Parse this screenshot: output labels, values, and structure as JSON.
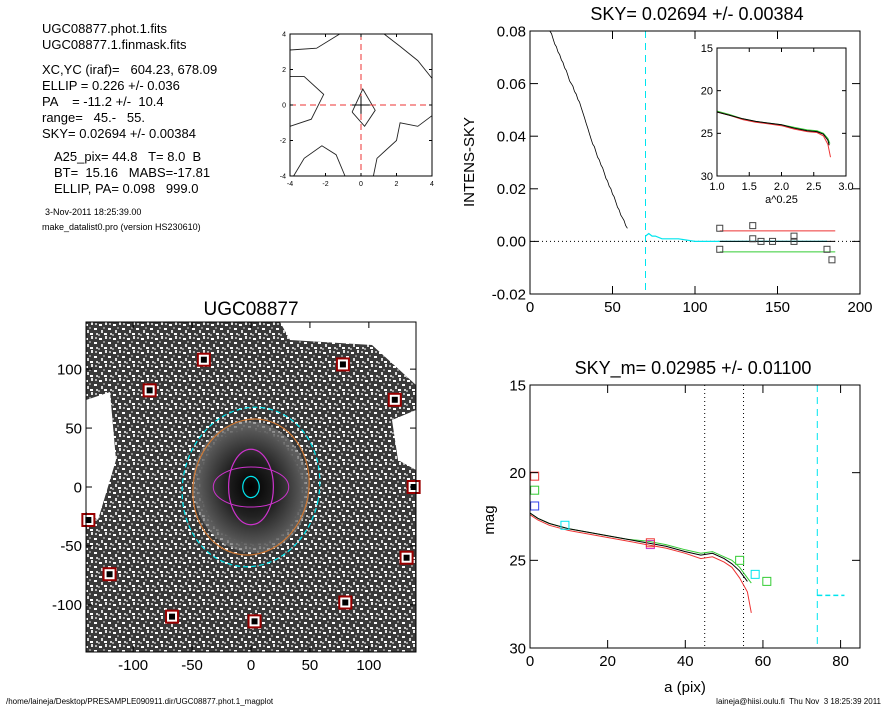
{
  "info": {
    "lines_a": [
      "UGC08877.phot.1.fits",
      "UGC08877.1.finmask.fits"
    ],
    "lines_b": [
      "XC,YC (iraf)=   604.23, 678.09",
      "ELLIP = 0.226 +/- 0.036",
      "PA    = -11.2 +/-  10.4",
      "range=   45.-   55.",
      "SKY= 0.02694 +/- 0.00384"
    ],
    "lines_c": [
      "A25_pix= 44.8   T= 8.0  B",
      "BT=  15.16   MABS=-17.81",
      "ELLIP, PA= 0.098   999.0"
    ],
    "date": "3-Nov-2011 18:25:39.00",
    "program": "make_datalist0.pro (version HS230610)"
  },
  "footer": {
    "left": "/home/laineja/Desktop/PRESAMPLE090911.dir/UGC08877.phot.1_magplot",
    "right": "laineja@hiisi.oulu.fi  Thu Nov  3 18:25:39 2011"
  },
  "colors": {
    "cyan": "#00e5ee",
    "red": "#ee3333",
    "green": "#33cc33",
    "blue": "#3344ee",
    "dark_red": "#990000",
    "magenta": "#cc33cc",
    "orange": "#cc7733"
  },
  "chart_data": [
    {
      "id": "contour",
      "type": "contour",
      "title": "",
      "xlim": [
        -4,
        4
      ],
      "ylim": [
        -4,
        4
      ],
      "xticks": [
        -4,
        -2,
        0,
        2,
        4
      ],
      "yticks": [
        -4,
        -2,
        0,
        2,
        4
      ],
      "xtick_labels": [
        "-4",
        "-2",
        "0",
        "2",
        "4"
      ],
      "ytick_labels": [
        "-4",
        "-2",
        "0",
        "2",
        "4"
      ],
      "contours": [
        [
          [
            -4,
            3.1
          ],
          [
            -2.5,
            3.2
          ],
          [
            -1.2,
            4.0
          ]
        ],
        [
          [
            1.3,
            4.0
          ],
          [
            2.2,
            3.3
          ],
          [
            3.2,
            2.5
          ],
          [
            4,
            1.5
          ]
        ],
        [
          [
            -4,
            -1.2
          ],
          [
            -2.8,
            -0.8
          ],
          [
            -2.1,
            0.6
          ],
          [
            -3.2,
            1.6
          ],
          [
            -4,
            1.6
          ]
        ],
        [
          [
            -3.8,
            -4
          ],
          [
            -3.2,
            -3.0
          ],
          [
            -2.2,
            -2.3
          ],
          [
            -1.4,
            -2.8
          ],
          [
            -0.9,
            -4
          ]
        ],
        [
          [
            0.7,
            -4
          ],
          [
            0.9,
            -3.0
          ],
          [
            2.0,
            -2.0
          ],
          [
            2.2,
            -1.0
          ],
          [
            3.2,
            -1.2
          ],
          [
            4,
            -0.6
          ]
        ],
        [
          [
            -0.5,
            -0.4
          ],
          [
            0.1,
            0.9
          ],
          [
            0.8,
            -0.3
          ],
          [
            0.2,
            -1.2
          ],
          [
            -0.5,
            -0.4
          ]
        ]
      ],
      "crosshair": [
        0,
        0
      ]
    },
    {
      "id": "sky",
      "type": "line",
      "title": "SKY= 0.02694 +/- 0.00384",
      "ylabel": "INTENS-SKY",
      "xlim": [
        0,
        200
      ],
      "ylim": [
        -0.02,
        0.08
      ],
      "xticks": [
        0,
        50,
        100,
        150,
        200
      ],
      "xtick_labels": [
        "0",
        "50",
        "100",
        "150",
        "200"
      ],
      "yticks": [
        -0.02,
        0,
        0.02,
        0.04,
        0.06,
        0.08
      ],
      "ytick_labels": [
        "-0.02",
        "0.00",
        "0.02",
        "0.04",
        "0.06",
        "0.08"
      ],
      "profile": [
        [
          12,
          0.08
        ],
        [
          13,
          0.079
        ],
        [
          14,
          0.077
        ],
        [
          15,
          0.075
        ],
        [
          16,
          0.074
        ],
        [
          17,
          0.072
        ],
        [
          18,
          0.071
        ],
        [
          19,
          0.069
        ],
        [
          20,
          0.068
        ],
        [
          21,
          0.066
        ],
        [
          22,
          0.065
        ],
        [
          23,
          0.063
        ],
        [
          24,
          0.061
        ],
        [
          25,
          0.06
        ],
        [
          26,
          0.059
        ],
        [
          27,
          0.057
        ],
        [
          28,
          0.056
        ],
        [
          29,
          0.054
        ],
        [
          30,
          0.053
        ],
        [
          31,
          0.051
        ],
        [
          32,
          0.049
        ],
        [
          33,
          0.047
        ],
        [
          34,
          0.045
        ],
        [
          35,
          0.043
        ],
        [
          36,
          0.041
        ],
        [
          37,
          0.039
        ],
        [
          38,
          0.037
        ],
        [
          39,
          0.036
        ],
        [
          40,
          0.034
        ],
        [
          41,
          0.032
        ],
        [
          42,
          0.031
        ],
        [
          43,
          0.029
        ],
        [
          44,
          0.028
        ],
        [
          45,
          0.026
        ],
        [
          46,
          0.024
        ],
        [
          47,
          0.023
        ],
        [
          48,
          0.021
        ],
        [
          49,
          0.02
        ],
        [
          50,
          0.018
        ],
        [
          51,
          0.017
        ],
        [
          52,
          0.015
        ],
        [
          53,
          0.013
        ],
        [
          54,
          0.012
        ],
        [
          55,
          0.01
        ],
        [
          56,
          0.009
        ],
        [
          57,
          0.008
        ],
        [
          58,
          0.006
        ],
        [
          59,
          0.005
        ]
      ],
      "sky_profile": [
        [
          70,
          0.002
        ],
        [
          72,
          0.003
        ],
        [
          74,
          0.002
        ],
        [
          76,
          0.002
        ],
        [
          80,
          0.001
        ],
        [
          85,
          0.001
        ],
        [
          90,
          0.001
        ],
        [
          95,
          0.0005
        ],
        [
          100,
          0.0
        ],
        [
          110,
          0.0
        ],
        [
          120,
          0.0
        ],
        [
          130,
          0.0
        ],
        [
          140,
          0.0
        ],
        [
          150,
          0.0
        ],
        [
          160,
          0.0
        ],
        [
          170,
          0.0
        ],
        [
          180,
          0.0
        ]
      ],
      "boxes": [
        [
          115,
          0.005
        ],
        [
          115,
          -0.003
        ],
        [
          135,
          0.006
        ],
        [
          135,
          0.001
        ],
        [
          140,
          0.0
        ],
        [
          147,
          0.0
        ],
        [
          160,
          0.002
        ],
        [
          160,
          0.0
        ],
        [
          180,
          -0.003
        ],
        [
          183,
          -0.007
        ]
      ],
      "hlines": [
        {
          "color": "red",
          "y": 0.004,
          "x": [
            115,
            185
          ]
        },
        {
          "color": "green",
          "y": -0.004,
          "x": [
            115,
            185
          ]
        },
        {
          "color": "black",
          "y": 0.0,
          "x": [
            115,
            185
          ]
        }
      ],
      "vline_x": 70,
      "inset": {
        "xlabel": "a^0.25",
        "xlim": [
          1.0,
          3.0
        ],
        "ylim": [
          15,
          30
        ],
        "xticks": [
          1.0,
          1.5,
          2.0,
          2.5,
          3.0
        ],
        "xtick_labels": [
          "1.0",
          "1.5",
          "2.0",
          "2.5",
          "3.0"
        ],
        "yticks": [
          15,
          20,
          25,
          30
        ],
        "ytick_labels": [
          "15",
          "20",
          "25",
          "30"
        ],
        "lines": [
          {
            "color": "green",
            "points": [
              [
                1.0,
                22.4
              ],
              [
                1.2,
                22.8
              ],
              [
                1.4,
                23.3
              ],
              [
                1.6,
                23.6
              ],
              [
                1.8,
                23.8
              ],
              [
                2.0,
                24.0
              ],
              [
                2.2,
                24.3
              ],
              [
                2.4,
                24.6
              ],
              [
                2.55,
                24.7
              ],
              [
                2.65,
                25.0
              ],
              [
                2.72,
                25.6
              ],
              [
                2.75,
                26.2
              ]
            ]
          },
          {
            "color": "red",
            "points": [
              [
                1.0,
                22.5
              ],
              [
                1.2,
                22.9
              ],
              [
                1.4,
                23.4
              ],
              [
                1.6,
                23.7
              ],
              [
                1.8,
                23.9
              ],
              [
                2.0,
                24.1
              ],
              [
                2.2,
                24.5
              ],
              [
                2.4,
                24.8
              ],
              [
                2.55,
                24.9
              ],
              [
                2.65,
                25.3
              ],
              [
                2.72,
                26.3
              ],
              [
                2.76,
                27.8
              ]
            ]
          },
          {
            "color": "black",
            "points": [
              [
                1.0,
                22.5
              ],
              [
                1.2,
                22.9
              ],
              [
                1.4,
                23.3
              ],
              [
                1.6,
                23.6
              ],
              [
                1.8,
                23.8
              ],
              [
                2.0,
                24.0
              ],
              [
                2.2,
                24.4
              ],
              [
                2.4,
                24.7
              ],
              [
                2.55,
                24.8
              ],
              [
                2.65,
                25.1
              ],
              [
                2.72,
                25.8
              ],
              [
                2.74,
                26.4
              ]
            ]
          }
        ]
      }
    },
    {
      "id": "image",
      "type": "image",
      "title": "UGC08877",
      "xlim": [
        -140,
        140
      ],
      "ylim": [
        -140,
        140
      ],
      "xticks": [
        -100,
        -50,
        0,
        50,
        100
      ],
      "xtick_labels": [
        "-100",
        "-50",
        "0",
        "50",
        "100"
      ],
      "yticks": [
        -100,
        -50,
        0,
        50,
        100
      ],
      "ytick_labels": [
        "-100",
        "-50",
        "0",
        "50",
        "100"
      ],
      "masked_stars": [
        [
          -40,
          108
        ],
        [
          -86,
          82
        ],
        [
          -138,
          -28
        ],
        [
          -120,
          -74
        ],
        [
          -67,
          -110
        ],
        [
          3,
          -114
        ],
        [
          80,
          -98
        ],
        [
          132,
          -60
        ],
        [
          138,
          0
        ],
        [
          122,
          74
        ],
        [
          78,
          104
        ]
      ],
      "ellipses": [
        {
          "color": "cyan",
          "a": 68,
          "b": 58,
          "pa": -11.2
        },
        {
          "color": "orange",
          "a": 58,
          "b": 49,
          "pa": -11.2
        },
        {
          "color": "magenta",
          "a": 32,
          "b": 19,
          "pa": 0
        },
        {
          "color": "cyan",
          "a": 9,
          "b": 7,
          "pa": 0
        }
      ]
    },
    {
      "id": "mag",
      "type": "line",
      "title": "SKY_m=  0.02985 +/- 0.01100",
      "xlabel": "a (pix)",
      "ylabel": "mag",
      "xlim": [
        0,
        85
      ],
      "ylim": [
        15,
        30
      ],
      "xticks": [
        0,
        20,
        40,
        60,
        80
      ],
      "xtick_labels": [
        "0",
        "20",
        "40",
        "60",
        "80"
      ],
      "yticks": [
        15,
        20,
        25,
        30
      ],
      "ytick_labels": [
        "15",
        "20",
        "25",
        "30"
      ],
      "series": [
        {
          "color": "green",
          "points": [
            [
              0,
              22.3
            ],
            [
              2,
              22.6
            ],
            [
              5,
              22.9
            ],
            [
              10,
              23.2
            ],
            [
              15,
              23.4
            ],
            [
              20,
              23.6
            ],
            [
              25,
              23.8
            ],
            [
              30,
              23.9
            ],
            [
              35,
              24.1
            ],
            [
              40,
              24.4
            ],
            [
              44,
              24.6
            ],
            [
              47,
              24.5
            ],
            [
              50,
              24.8
            ],
            [
              52,
              25.0
            ],
            [
              54,
              25.4
            ],
            [
              56,
              26.0
            ],
            [
              57,
              26.3
            ]
          ]
        },
        {
          "color": "red",
          "points": [
            [
              0,
              22.4
            ],
            [
              2,
              22.7
            ],
            [
              5,
              23.0
            ],
            [
              10,
              23.3
            ],
            [
              15,
              23.5
            ],
            [
              20,
              23.7
            ],
            [
              25,
              23.9
            ],
            [
              30,
              24.1
            ],
            [
              35,
              24.3
            ],
            [
              40,
              24.6
            ],
            [
              44,
              24.9
            ],
            [
              47,
              24.8
            ],
            [
              50,
              25.1
            ],
            [
              52,
              25.4
            ],
            [
              54,
              26.0
            ],
            [
              56,
              26.8
            ],
            [
              57,
              28.0
            ]
          ]
        },
        {
          "color": "black",
          "points": [
            [
              0,
              22.3
            ],
            [
              2,
              22.6
            ],
            [
              5,
              22.9
            ],
            [
              10,
              23.2
            ],
            [
              15,
              23.4
            ],
            [
              20,
              23.6
            ],
            [
              25,
              23.8
            ],
            [
              30,
              24.0
            ],
            [
              35,
              24.2
            ],
            [
              40,
              24.5
            ],
            [
              44,
              24.7
            ],
            [
              47,
              24.6
            ],
            [
              50,
              24.9
            ],
            [
              52,
              25.2
            ],
            [
              54,
              25.6
            ],
            [
              56,
              26.2
            ]
          ]
        }
      ],
      "markers": [
        {
          "color": "red",
          "x": 1.2,
          "y": 20.2
        },
        {
          "color": "green",
          "x": 1.2,
          "y": 21.0
        },
        {
          "color": "blue",
          "x": 1.2,
          "y": 21.9
        },
        {
          "color": "cyan",
          "x": 9,
          "y": 23.0
        },
        {
          "color": "magenta",
          "x": 31,
          "y": 24.1
        },
        {
          "color": "green",
          "x": 54,
          "y": 25.0
        },
        {
          "color": "cyan",
          "x": 58,
          "y": 25.8
        },
        {
          "color": "red",
          "x": 31,
          "y": 24.0
        },
        {
          "color": "green",
          "x": 61,
          "y": 26.2
        }
      ],
      "dotted_vlines": [
        45,
        55
      ],
      "cyan_vline_x": 74,
      "cyan_dash": {
        "x": [
          74,
          81
        ],
        "y": 27.0
      }
    }
  ]
}
